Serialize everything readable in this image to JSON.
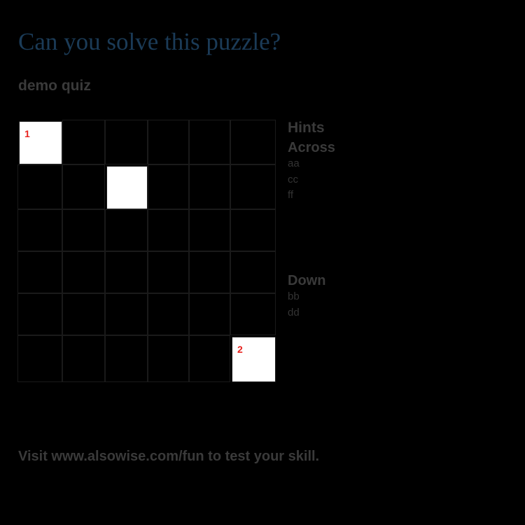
{
  "title": "Can you solve this puzzle?",
  "quiz_name": "demo quiz",
  "grid": {
    "rows": 6,
    "cols": 6,
    "open_cells": [
      {
        "row": 0,
        "col": 0,
        "number": "1"
      },
      {
        "row": 1,
        "col": 2,
        "number": ""
      },
      {
        "row": 5,
        "col": 5,
        "number": "2"
      }
    ]
  },
  "hints": {
    "title": "Hints",
    "across": {
      "label": "Across",
      "clues": [
        "aa",
        "cc",
        "ff"
      ]
    },
    "down": {
      "label": "Down",
      "clues": [
        "bb",
        "dd"
      ]
    }
  },
  "footer": "Visit www.alsowise.com/fun to test your skill.",
  "colors": {
    "background": "#000000",
    "title": "#1b3b57",
    "heading": "#3a3a3a",
    "clue_text": "#333333",
    "grid_line": "#1a1a1a",
    "open_cell": "#ffffff",
    "cell_number": "#e8231f"
  }
}
